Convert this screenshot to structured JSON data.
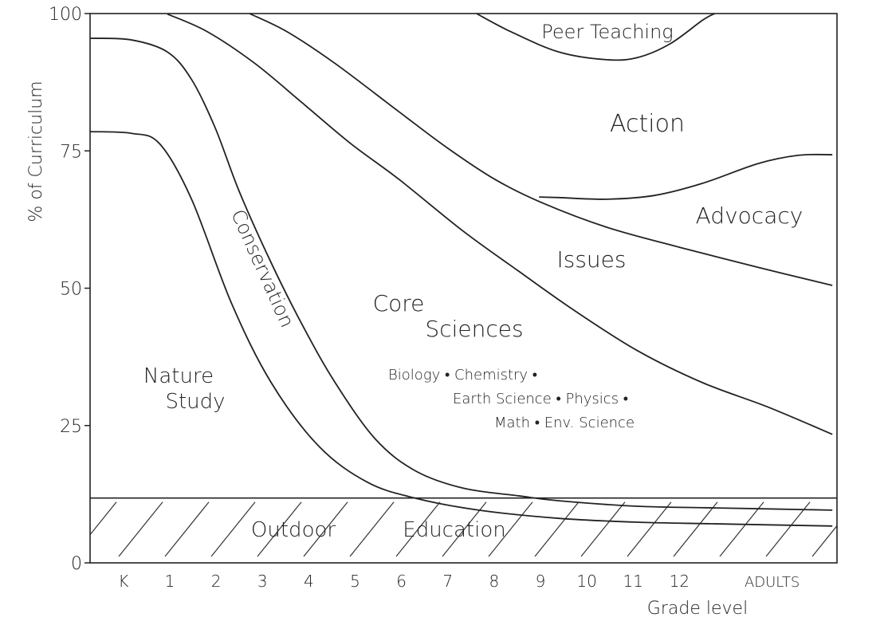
{
  "chart_data": {
    "type": "area",
    "title": "",
    "xlabel": "Grade level",
    "ylabel": "% of Curriculum",
    "ylim": [
      0,
      100
    ],
    "yticks": [
      "0",
      "25",
      "50",
      "75",
      "100"
    ],
    "ytick_values": [
      0,
      25,
      50,
      75,
      100
    ],
    "xticks": [
      "K",
      "1",
      "2",
      "3",
      "4",
      "5",
      "6",
      "7",
      "8",
      "9",
      "10",
      "11",
      "12",
      "ADULTS"
    ],
    "xtick_positions": [
      0,
      1,
      2,
      3,
      4,
      5,
      6,
      7,
      8,
      9,
      10,
      11,
      12,
      14
    ],
    "xlim": [
      -0.72,
      15.4
    ],
    "grid": false,
    "line_color": "#222222",
    "boundaries": [
      {
        "id": "nature-study-upper",
        "points": [
          [
            -0.72,
            78.5
          ],
          [
            0.17,
            78.2
          ],
          [
            0.78,
            76.3
          ],
          [
            1.47,
            66.2
          ],
          [
            2.33,
            47.3
          ],
          [
            3.19,
            32.8
          ],
          [
            4.22,
            21.2
          ],
          [
            5.26,
            14.7
          ],
          [
            6.29,
            11.8
          ],
          [
            7.67,
            9.6
          ],
          [
            9.4,
            8.1
          ],
          [
            11.1,
            7.4
          ],
          [
            12.8,
            7.1
          ],
          [
            15.3,
            6.7
          ]
        ]
      },
      {
        "id": "conservation-upper",
        "points": [
          [
            -0.72,
            95.5
          ],
          [
            0.17,
            95.2
          ],
          [
            0.95,
            93
          ],
          [
            1.47,
            88
          ],
          [
            1.98,
            79.2
          ],
          [
            2.5,
            67.6
          ],
          [
            3.19,
            54.6
          ],
          [
            3.88,
            43
          ],
          [
            4.57,
            32.8
          ],
          [
            5.43,
            22.6
          ],
          [
            6.29,
            16.8
          ],
          [
            7.33,
            13.6
          ],
          [
            8.53,
            12.2
          ],
          [
            9.4,
            11.3
          ],
          [
            11.1,
            10.3
          ],
          [
            12.8,
            10
          ],
          [
            15.3,
            9.6
          ]
        ]
      },
      {
        "id": "core-sciences-upper",
        "points": [
          [
            0.95,
            99.9
          ],
          [
            1.81,
            96.7
          ],
          [
            2.84,
            90.9
          ],
          [
            3.88,
            83.6
          ],
          [
            4.91,
            76.3
          ],
          [
            5.95,
            69.8
          ],
          [
            7.33,
            60.4
          ],
          [
            8.53,
            53.1
          ],
          [
            9.74,
            45.9
          ],
          [
            11.1,
            38.6
          ],
          [
            12.5,
            32.8
          ],
          [
            13.9,
            28.4
          ],
          [
            15.3,
            23.4
          ]
        ]
      },
      {
        "id": "issues-upper",
        "points": [
          [
            2.72,
            100
          ],
          [
            3.53,
            96.7
          ],
          [
            4.57,
            90.9
          ],
          [
            5.95,
            82.1
          ],
          [
            6.98,
            75.6
          ],
          [
            8.02,
            69.8
          ],
          [
            9.05,
            65.5
          ],
          [
            10.43,
            61.1
          ],
          [
            11.98,
            57.5
          ],
          [
            13.7,
            53.8
          ],
          [
            15.3,
            50.5
          ]
        ]
      },
      {
        "id": "advocacy-upper",
        "points": [
          [
            8.97,
            66.6
          ],
          [
            9.4,
            66.5
          ],
          [
            10.43,
            66.2
          ],
          [
            11.47,
            66.9
          ],
          [
            12.5,
            69.1
          ],
          [
            13.7,
            72.7
          ],
          [
            14.57,
            74.2
          ],
          [
            15.3,
            74.3
          ]
        ]
      },
      {
        "id": "peer-teaching-lower",
        "points": [
          [
            7.62,
            100
          ],
          [
            8.36,
            96.7
          ],
          [
            9.4,
            93
          ],
          [
            10.43,
            91.6
          ],
          [
            11.1,
            92
          ],
          [
            11.8,
            94.5
          ],
          [
            12.5,
            98.8
          ],
          [
            12.76,
            100
          ]
        ]
      }
    ],
    "outdoor_education_level": 11.8,
    "region_labels": {
      "peer_teaching": "Peer Teaching",
      "action": "Action",
      "advocacy": "Advocacy",
      "issues": "Issues",
      "core": "Core",
      "sciences": "Sciences",
      "nature": "Nature",
      "study": "Study",
      "conservation": "Conservation",
      "outdoor": "Outdoor",
      "education": "Education"
    },
    "annotations": [
      "Biology • Chemistry •",
      "Earth Science • Physics •",
      "Math • Env. Science"
    ]
  }
}
